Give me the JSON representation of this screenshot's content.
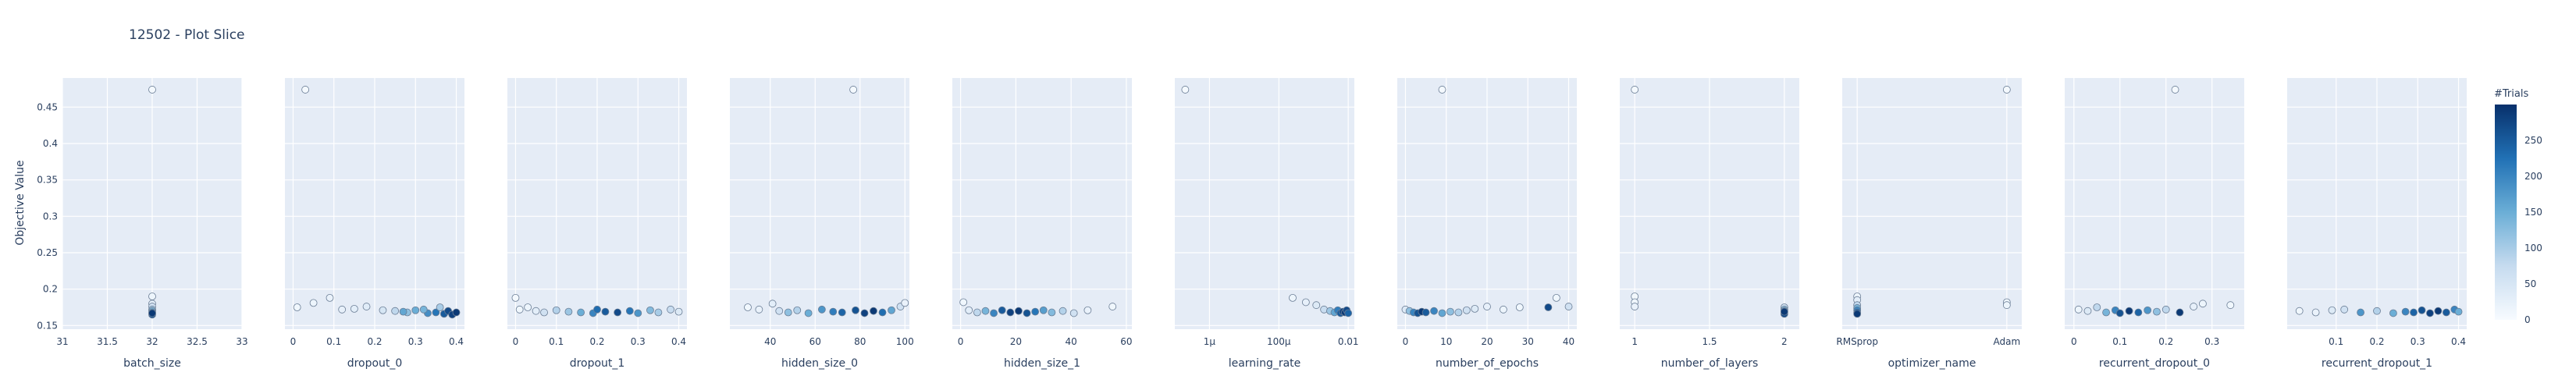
{
  "chart_data": {
    "type": "scatter",
    "title": "12502 - Plot Slice",
    "ylabel": "Objective Value",
    "ylim": [
      0.145,
      0.49
    ],
    "yticks": [
      0.15,
      0.2,
      0.25,
      0.3,
      0.35,
      0.4,
      0.45
    ],
    "ytick_labels": [
      "0.15",
      "0.2",
      "0.25",
      "0.3",
      "0.35",
      "0.4",
      "0.45"
    ],
    "grid": true,
    "colorbar": {
      "title": "#Trials",
      "range": [
        0,
        300
      ],
      "ticks": [
        0,
        50,
        100,
        150,
        200,
        250
      ],
      "colors": [
        "#f7fbff",
        "#c6dbef",
        "#6baed6",
        "#2171b5",
        "#08306b"
      ]
    },
    "panels": [
      {
        "xlabel": "batch_size",
        "scale": "linear",
        "xlim": [
          31,
          33
        ],
        "xticks": [
          31,
          31.5,
          32,
          32.5,
          33
        ],
        "xtick_labels": [
          "31",
          "31.5",
          "32",
          "32.5",
          "33"
        ],
        "points": [
          [
            32,
            0.474,
            5
          ],
          [
            32,
            0.19,
            15
          ],
          [
            32,
            0.18,
            30
          ],
          [
            32,
            0.176,
            60
          ],
          [
            32,
            0.172,
            100
          ],
          [
            32,
            0.17,
            140
          ],
          [
            32,
            0.168,
            180
          ],
          [
            32,
            0.166,
            220
          ],
          [
            32,
            0.165,
            260
          ],
          [
            32,
            0.167,
            290
          ]
        ]
      },
      {
        "xlabel": "dropout_0",
        "scale": "linear",
        "xlim": [
          -0.02,
          0.42
        ],
        "xticks": [
          0,
          0.1,
          0.2,
          0.3,
          0.4
        ],
        "xtick_labels": [
          "0",
          "0.1",
          "0.2",
          "0.3",
          "0.4"
        ],
        "points": [
          [
            0.03,
            0.474,
            5
          ],
          [
            0.01,
            0.175,
            10
          ],
          [
            0.05,
            0.181,
            15
          ],
          [
            0.09,
            0.188,
            20
          ],
          [
            0.12,
            0.172,
            25
          ],
          [
            0.15,
            0.173,
            30
          ],
          [
            0.18,
            0.176,
            35
          ],
          [
            0.22,
            0.171,
            50
          ],
          [
            0.25,
            0.17,
            80
          ],
          [
            0.28,
            0.168,
            120
          ],
          [
            0.3,
            0.171,
            150
          ],
          [
            0.33,
            0.167,
            190
          ],
          [
            0.35,
            0.168,
            220
          ],
          [
            0.37,
            0.166,
            250
          ],
          [
            0.38,
            0.17,
            270
          ],
          [
            0.39,
            0.165,
            280
          ],
          [
            0.4,
            0.168,
            290
          ],
          [
            0.36,
            0.175,
            100
          ],
          [
            0.32,
            0.172,
            140
          ],
          [
            0.27,
            0.169,
            160
          ]
        ]
      },
      {
        "xlabel": "dropout_1",
        "scale": "linear",
        "xlim": [
          -0.02,
          0.42
        ],
        "xticks": [
          0,
          0.1,
          0.2,
          0.3,
          0.4
        ],
        "xtick_labels": [
          "0",
          "0.1",
          "0.2",
          "0.3",
          "0.4"
        ],
        "points": [
          [
            0.0,
            0.188,
            5
          ],
          [
            0.01,
            0.172,
            10
          ],
          [
            0.03,
            0.175,
            15
          ],
          [
            0.05,
            0.17,
            30
          ],
          [
            0.07,
            0.168,
            60
          ],
          [
            0.1,
            0.171,
            90
          ],
          [
            0.13,
            0.169,
            110
          ],
          [
            0.16,
            0.168,
            150
          ],
          [
            0.19,
            0.167,
            200
          ],
          [
            0.2,
            0.172,
            230
          ],
          [
            0.22,
            0.169,
            250
          ],
          [
            0.25,
            0.168,
            270
          ],
          [
            0.28,
            0.17,
            220
          ],
          [
            0.3,
            0.167,
            180
          ],
          [
            0.33,
            0.171,
            130
          ],
          [
            0.35,
            0.168,
            100
          ],
          [
            0.38,
            0.172,
            70
          ],
          [
            0.4,
            0.169,
            40
          ]
        ]
      },
      {
        "xlabel": "hidden_size_0",
        "scale": "linear",
        "xlim": [
          22,
          102
        ],
        "xticks": [
          40,
          60,
          80,
          100
        ],
        "xtick_labels": [
          "40",
          "60",
          "80",
          "100"
        ],
        "points": [
          [
            77,
            0.474,
            5
          ],
          [
            30,
            0.175,
            10
          ],
          [
            35,
            0.172,
            20
          ],
          [
            41,
            0.18,
            30
          ],
          [
            44,
            0.17,
            60
          ],
          [
            48,
            0.168,
            120
          ],
          [
            52,
            0.171,
            90
          ],
          [
            57,
            0.167,
            150
          ],
          [
            63,
            0.172,
            180
          ],
          [
            68,
            0.169,
            210
          ],
          [
            72,
            0.168,
            240
          ],
          [
            78,
            0.171,
            260
          ],
          [
            82,
            0.167,
            280
          ],
          [
            86,
            0.17,
            290
          ],
          [
            90,
            0.168,
            230
          ],
          [
            94,
            0.171,
            160
          ],
          [
            98,
            0.176,
            60
          ],
          [
            100,
            0.181,
            20
          ]
        ]
      },
      {
        "xlabel": "hidden_size_1",
        "scale": "linear",
        "xlim": [
          -3,
          62
        ],
        "xticks": [
          0,
          20,
          40,
          60
        ],
        "xtick_labels": [
          "0",
          "20",
          "40",
          "60"
        ],
        "points": [
          [
            1,
            0.182,
            10
          ],
          [
            3,
            0.171,
            30
          ],
          [
            6,
            0.168,
            80
          ],
          [
            9,
            0.17,
            140
          ],
          [
            12,
            0.167,
            200
          ],
          [
            15,
            0.171,
            250
          ],
          [
            18,
            0.168,
            280
          ],
          [
            21,
            0.17,
            290
          ],
          [
            24,
            0.167,
            260
          ],
          [
            27,
            0.169,
            220
          ],
          [
            30,
            0.171,
            170
          ],
          [
            33,
            0.168,
            130
          ],
          [
            37,
            0.17,
            90
          ],
          [
            41,
            0.167,
            60
          ],
          [
            46,
            0.171,
            20
          ],
          [
            55,
            0.176,
            10
          ]
        ]
      },
      {
        "xlabel": "learning_rate",
        "scale": "log",
        "xlim": [
          1e-07,
          0.015
        ],
        "xticks": [
          1e-06,
          0.0001,
          0.01
        ],
        "xtick_labels": [
          "1μ",
          "100μ",
          "0.01"
        ],
        "points": [
          [
            2e-07,
            0.474,
            5
          ],
          [
            0.00025,
            0.188,
            15
          ],
          [
            0.0006,
            0.182,
            25
          ],
          [
            0.0012,
            0.178,
            40
          ],
          [
            0.002,
            0.172,
            70
          ],
          [
            0.003,
            0.17,
            110
          ],
          [
            0.004,
            0.168,
            160
          ],
          [
            0.005,
            0.171,
            210
          ],
          [
            0.006,
            0.167,
            250
          ],
          [
            0.007,
            0.169,
            280
          ],
          [
            0.008,
            0.168,
            290
          ],
          [
            0.009,
            0.171,
            270
          ],
          [
            0.01,
            0.167,
            240
          ]
        ]
      },
      {
        "xlabel": "number_of_epochs",
        "scale": "linear",
        "xlim": [
          -2,
          42
        ],
        "xticks": [
          0,
          10,
          20,
          30,
          40
        ],
        "xtick_labels": [
          "0",
          "10",
          "20",
          "30",
          "40"
        ],
        "points": [
          [
            9,
            0.474,
            5
          ],
          [
            0,
            0.172,
            40
          ],
          [
            1,
            0.17,
            120
          ],
          [
            2,
            0.168,
            200
          ],
          [
            3,
            0.167,
            260
          ],
          [
            4,
            0.169,
            290
          ],
          [
            5,
            0.168,
            250
          ],
          [
            7,
            0.17,
            200
          ],
          [
            9,
            0.167,
            160
          ],
          [
            11,
            0.169,
            120
          ],
          [
            13,
            0.168,
            90
          ],
          [
            15,
            0.171,
            60
          ],
          [
            17,
            0.173,
            40
          ],
          [
            20,
            0.176,
            25
          ],
          [
            24,
            0.172,
            15
          ],
          [
            28,
            0.175,
            10
          ],
          [
            35,
            0.175,
            270
          ],
          [
            37,
            0.188,
            10
          ],
          [
            40,
            0.176,
            60
          ]
        ]
      },
      {
        "xlabel": "number_of_layers",
        "scale": "linear",
        "xlim": [
          0.9,
          2.1
        ],
        "xticks": [
          1,
          1.5,
          2
        ],
        "xtick_labels": [
          "1",
          "1.5",
          "2"
        ],
        "points": [
          [
            1,
            0.474,
            5
          ],
          [
            1,
            0.19,
            8
          ],
          [
            1,
            0.182,
            12
          ],
          [
            1,
            0.176,
            20
          ],
          [
            2,
            0.175,
            60
          ],
          [
            2,
            0.172,
            120
          ],
          [
            2,
            0.17,
            180
          ],
          [
            2,
            0.168,
            230
          ],
          [
            2,
            0.166,
            270
          ],
          [
            2,
            0.169,
            290
          ]
        ]
      },
      {
        "xlabel": "optimizer_name",
        "scale": "category",
        "xlim": [
          -0.1,
          1.1
        ],
        "xticks": [
          0,
          1
        ],
        "xtick_labels": [
          "RMSprop",
          "Adam"
        ],
        "points": [
          [
            1,
            0.474,
            5
          ],
          [
            0,
            0.19,
            15
          ],
          [
            0,
            0.185,
            30
          ],
          [
            0,
            0.178,
            80
          ],
          [
            0,
            0.174,
            140
          ],
          [
            0,
            0.171,
            200
          ],
          [
            0,
            0.168,
            250
          ],
          [
            0,
            0.166,
            290
          ],
          [
            1,
            0.182,
            10
          ],
          [
            1,
            0.178,
            15
          ]
        ]
      },
      {
        "xlabel": "recurrent_dropout_0",
        "scale": "linear",
        "xlim": [
          -0.02,
          0.37
        ],
        "xticks": [
          0,
          0.1,
          0.2,
          0.3
        ],
        "xtick_labels": [
          "0",
          "0.1",
          "0.2",
          "0.3"
        ],
        "points": [
          [
            0.22,
            0.474,
            5
          ],
          [
            0.01,
            0.172,
            15
          ],
          [
            0.03,
            0.17,
            40
          ],
          [
            0.05,
            0.175,
            80
          ],
          [
            0.07,
            0.168,
            140
          ],
          [
            0.09,
            0.171,
            200
          ],
          [
            0.1,
            0.167,
            260
          ],
          [
            0.12,
            0.17,
            290
          ],
          [
            0.14,
            0.168,
            240
          ],
          [
            0.16,
            0.171,
            180
          ],
          [
            0.18,
            0.169,
            120
          ],
          [
            0.2,
            0.172,
            80
          ],
          [
            0.23,
            0.168,
            290
          ],
          [
            0.26,
            0.176,
            25
          ],
          [
            0.28,
            0.18,
            15
          ],
          [
            0.34,
            0.178,
            10
          ]
        ]
      },
      {
        "xlabel": "recurrent_dropout_1",
        "scale": "linear",
        "xlim": [
          -0.02,
          0.42
        ],
        "xticks": [
          0.1,
          0.2,
          0.3,
          0.4
        ],
        "xtick_labels": [
          "0.1",
          "0.2",
          "0.3",
          "0.4"
        ],
        "points": [
          [
            0.01,
            0.17,
            10
          ],
          [
            0.05,
            0.168,
            20
          ],
          [
            0.09,
            0.171,
            40
          ],
          [
            0.12,
            0.172,
            60
          ],
          [
            0.16,
            0.168,
            180
          ],
          [
            0.2,
            0.17,
            90
          ],
          [
            0.24,
            0.167,
            150
          ],
          [
            0.27,
            0.169,
            200
          ],
          [
            0.29,
            0.168,
            240
          ],
          [
            0.31,
            0.171,
            260
          ],
          [
            0.33,
            0.167,
            280
          ],
          [
            0.35,
            0.17,
            290
          ],
          [
            0.37,
            0.168,
            250
          ],
          [
            0.39,
            0.172,
            200
          ],
          [
            0.4,
            0.169,
            150
          ]
        ]
      }
    ]
  }
}
